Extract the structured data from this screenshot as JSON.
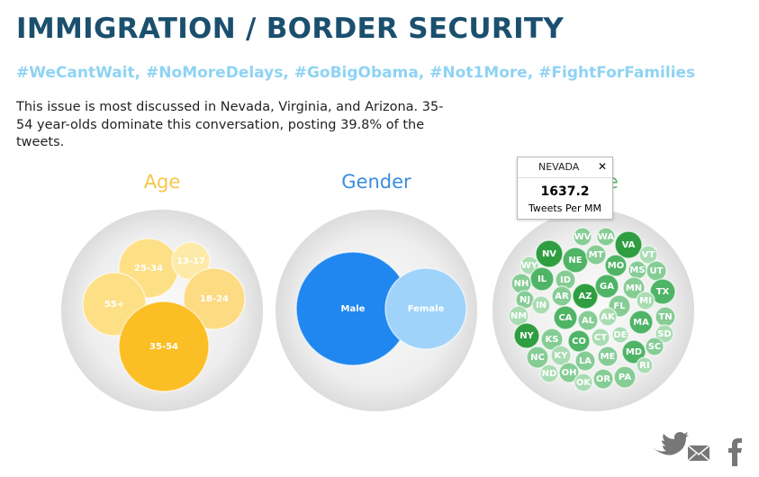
{
  "header": {
    "title": "IMMIGRATION / BORDER SECURITY",
    "hashtags": "#WeCantWait, #NoMoreDelays, #GoBigObama, #Not1More, #FightForFamilies"
  },
  "description": "This issue is most discussed in Nevada, Virginia, and Arizona. 35-54 year-olds dominate this conversation, posting 39.8% of the tweets.",
  "panels": [
    {
      "title": "Age",
      "bubbles": [
        "25-34",
        "13-17",
        "55+",
        "18-24",
        "35-54"
      ]
    },
    {
      "title": "Gender",
      "bubbles": [
        "Male",
        "Female"
      ]
    },
    {
      "title": "State",
      "bubbles": [
        "WV",
        "WA",
        "NV",
        "NE",
        "VA",
        "MT",
        "VT",
        "MO",
        "MS",
        "UT",
        "WY",
        "ID",
        "IL",
        "NH",
        "AR",
        "AZ",
        "GA",
        "MN",
        "TX",
        "MI",
        "NJ",
        "IN",
        "FL",
        "NM",
        "CA",
        "AL",
        "AK",
        "MA",
        "TN",
        "NY",
        "KS",
        "CO",
        "SD",
        "NC",
        "KY",
        "LA",
        "ME",
        "MD",
        "SC",
        "DE",
        "ND",
        "OH",
        "RI",
        "OK",
        "OR",
        "PA",
        "CT"
      ]
    }
  ],
  "tooltip": {
    "state": "NEVADA",
    "close": "✕",
    "value": "1637.2",
    "unit": "Tweets Per MM"
  }
}
